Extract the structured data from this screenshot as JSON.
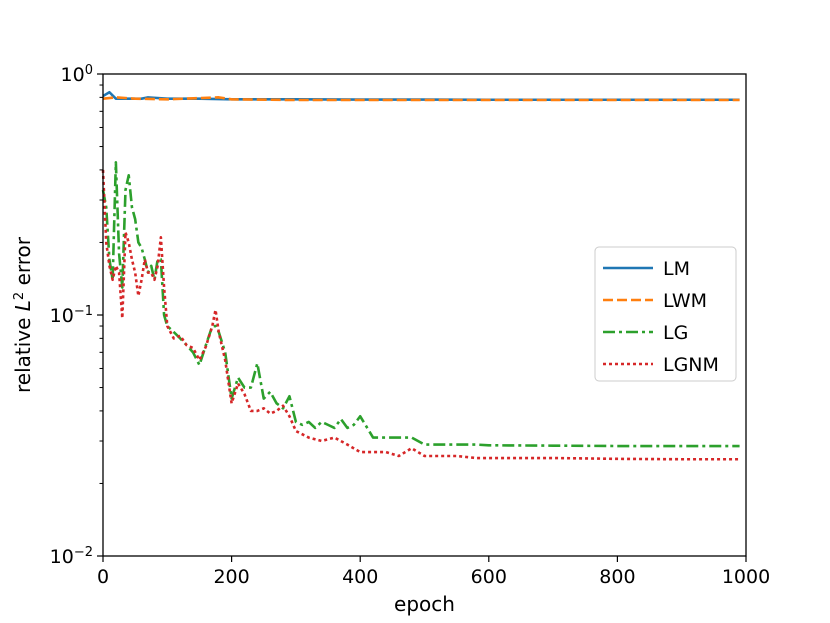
{
  "chart_data": {
    "type": "line",
    "title": "",
    "xlabel": "epoch",
    "ylabel_prefix": "relative ",
    "ylabel_var": "L",
    "ylabel_sup": "2",
    "ylabel_suffix": " error",
    "xlim": [
      0,
      1000
    ],
    "ylim": [
      0.01,
      1
    ],
    "yscale": "log",
    "grid": false,
    "legend_position": "center-right",
    "x_ticks": [
      0,
      200,
      400,
      600,
      800,
      1000
    ],
    "x_tick_labels": [
      "0",
      "200",
      "400",
      "600",
      "800",
      "1000"
    ],
    "y_ticks": [
      {
        "value": 1,
        "base": "10",
        "exp": "0"
      },
      {
        "value": 0.1,
        "base": "10",
        "exp": "−1"
      },
      {
        "value": 0.01,
        "base": "10",
        "exp": "−2"
      }
    ],
    "series": [
      {
        "name": "LM",
        "color": "#1f77b4",
        "dash": "solid",
        "x": [
          0,
          10,
          20,
          40,
          60,
          70,
          100,
          150,
          200,
          300,
          400,
          500,
          600,
          700,
          800,
          900,
          990
        ],
        "y": [
          0.81,
          0.84,
          0.79,
          0.79,
          0.79,
          0.8,
          0.79,
          0.79,
          0.785,
          0.785,
          0.783,
          0.783,
          0.782,
          0.782,
          0.782,
          0.782,
          0.782
        ]
      },
      {
        "name": "LWM",
        "color": "#ff7f0e",
        "dash": "dashed",
        "x": [
          0,
          20,
          50,
          100,
          180,
          200,
          300,
          400,
          500,
          700,
          990
        ],
        "y": [
          0.79,
          0.8,
          0.79,
          0.785,
          0.8,
          0.785,
          0.78,
          0.78,
          0.78,
          0.78,
          0.78
        ]
      },
      {
        "name": "LG",
        "color": "#2ca02c",
        "dash": "dashdot",
        "x": [
          0,
          5,
          10,
          15,
          20,
          25,
          30,
          35,
          40,
          45,
          50,
          55,
          60,
          65,
          70,
          75,
          80,
          85,
          90,
          95,
          100,
          110,
          120,
          130,
          140,
          150,
          160,
          170,
          175,
          180,
          190,
          200,
          210,
          220,
          230,
          240,
          250,
          260,
          270,
          280,
          290,
          300,
          310,
          320,
          330,
          340,
          350,
          360,
          370,
          380,
          390,
          400,
          420,
          440,
          460,
          480,
          500,
          550,
          580,
          600,
          700,
          800,
          900,
          990
        ],
        "y": [
          0.33,
          0.28,
          0.17,
          0.14,
          0.43,
          0.18,
          0.13,
          0.33,
          0.38,
          0.28,
          0.25,
          0.2,
          0.19,
          0.17,
          0.15,
          0.16,
          0.14,
          0.17,
          0.17,
          0.1,
          0.09,
          0.085,
          0.08,
          0.075,
          0.07,
          0.062,
          0.075,
          0.09,
          0.09,
          0.085,
          0.07,
          0.045,
          0.055,
          0.05,
          0.05,
          0.063,
          0.045,
          0.048,
          0.043,
          0.041,
          0.046,
          0.036,
          0.035,
          0.036,
          0.034,
          0.036,
          0.035,
          0.034,
          0.037,
          0.034,
          0.035,
          0.038,
          0.031,
          0.031,
          0.031,
          0.031,
          0.029,
          0.029,
          0.029,
          0.0288,
          0.0287,
          0.0286,
          0.0286,
          0.0286
        ]
      },
      {
        "name": "LGNM",
        "color": "#d62728",
        "dash": "dotted",
        "x": [
          0,
          5,
          10,
          15,
          20,
          25,
          30,
          35,
          40,
          45,
          50,
          55,
          60,
          65,
          70,
          75,
          80,
          85,
          90,
          95,
          100,
          110,
          120,
          130,
          140,
          150,
          160,
          170,
          175,
          180,
          190,
          200,
          210,
          220,
          230,
          240,
          250,
          260,
          270,
          280,
          290,
          300,
          320,
          340,
          360,
          380,
          400,
          420,
          440,
          460,
          480,
          500,
          550,
          580,
          600,
          700,
          800,
          900,
          990
        ],
        "y": [
          0.4,
          0.2,
          0.16,
          0.14,
          0.16,
          0.15,
          0.097,
          0.22,
          0.2,
          0.17,
          0.15,
          0.12,
          0.14,
          0.17,
          0.15,
          0.15,
          0.14,
          0.16,
          0.21,
          0.13,
          0.09,
          0.08,
          0.082,
          0.075,
          0.073,
          0.065,
          0.074,
          0.09,
          0.105,
          0.085,
          0.065,
          0.043,
          0.052,
          0.047,
          0.04,
          0.04,
          0.041,
          0.039,
          0.04,
          0.042,
          0.038,
          0.033,
          0.031,
          0.03,
          0.031,
          0.029,
          0.027,
          0.027,
          0.027,
          0.026,
          0.028,
          0.026,
          0.026,
          0.0255,
          0.0255,
          0.0255,
          0.0253,
          0.0252,
          0.0252
        ]
      }
    ]
  }
}
